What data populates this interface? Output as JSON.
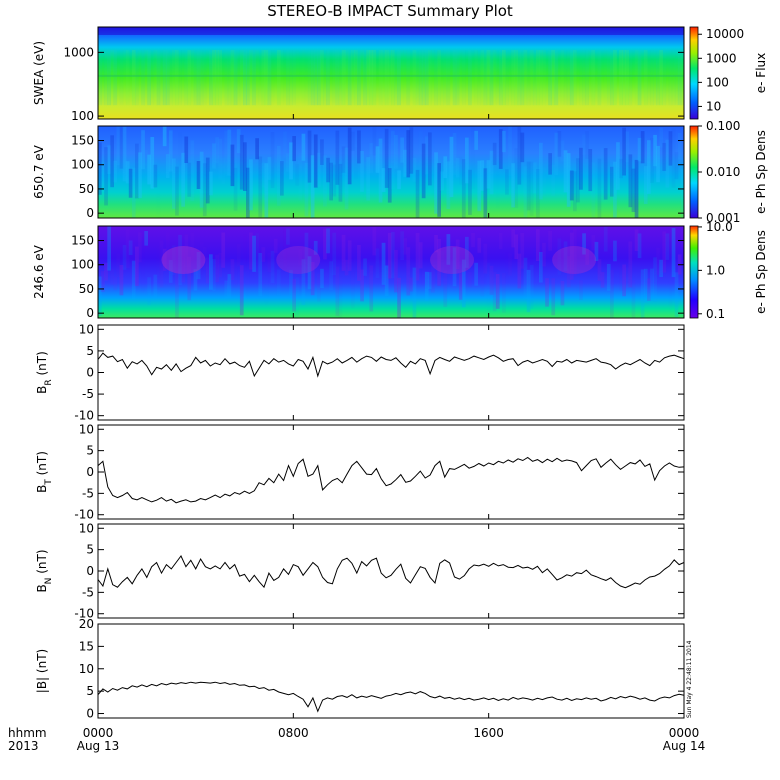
{
  "title": "STEREO-B IMPACT Summary Plot",
  "stamp": "Sun May  4 22:48:11 2014",
  "x_axis": {
    "corner_labels": [
      "hhmm",
      "2013"
    ],
    "ticks": [
      {
        "t": 0,
        "top": "0000",
        "bottom": "Aug 13"
      },
      {
        "t": 8,
        "top": "0800",
        "bottom": ""
      },
      {
        "t": 16,
        "top": "1600",
        "bottom": ""
      },
      {
        "t": 24,
        "top": "0000",
        "bottom": "Aug 14"
      }
    ]
  },
  "spectrograms": [
    {
      "id": "swea",
      "ylabel": "SWEA (eV)",
      "ytype": "log",
      "yrange": [
        90,
        2500
      ],
      "yticks": [
        "100",
        "1000"
      ],
      "ytickvals": [
        100,
        1000
      ],
      "ylog": true,
      "cbar_label": "e- Flux",
      "cbar_ticks": [
        "10000",
        "1000",
        "100",
        "10"
      ],
      "cbar_vals": [
        10000,
        1000,
        100,
        10
      ],
      "cbar_range": [
        3,
        20000
      ],
      "cbar_log": true,
      "palette": "rainbow"
    },
    {
      "id": "pad650",
      "ylabel": "650.7 eV",
      "ytype": "linear",
      "yrange": [
        -10,
        180
      ],
      "yticks": [
        "0",
        "50",
        "100",
        "150"
      ],
      "ytickvals": [
        0,
        50,
        100,
        150
      ],
      "ylog": false,
      "cbar_label": "e- Ph Sp Dens",
      "cbar_ticks": [
        "0.100",
        "0.010",
        "0.001"
      ],
      "cbar_vals": [
        0.1,
        0.01,
        0.001
      ],
      "cbar_range": [
        0.001,
        0.1
      ],
      "cbar_log": true,
      "palette": "rainbow"
    },
    {
      "id": "pad246",
      "ylabel": "246.6 eV",
      "ytype": "linear",
      "yrange": [
        -10,
        180
      ],
      "yticks": [
        "0",
        "50",
        "100",
        "150"
      ],
      "ytickvals": [
        0,
        50,
        100,
        150
      ],
      "ylog": false,
      "cbar_label": "e- Ph Sp Dens",
      "cbar_ticks": [
        "10.0",
        "1.0",
        "0.1"
      ],
      "cbar_vals": [
        10,
        1,
        0.1
      ],
      "cbar_range": [
        0.08,
        10.5
      ],
      "cbar_log": true,
      "palette": "violet"
    }
  ],
  "chart_data": [
    {
      "type": "line",
      "id": "br",
      "ylabel": "B",
      "ysub": "R",
      "yunit": "(nT)",
      "ylim": [
        -11,
        11
      ],
      "yticks": [
        "10",
        "5",
        "0",
        "-5",
        "-10"
      ],
      "ytickvals": [
        10,
        5,
        0,
        -5,
        -10
      ],
      "x": [
        0,
        0.2,
        0.4,
        0.6,
        0.8,
        1,
        1.2,
        1.4,
        1.6,
        1.8,
        2,
        2.2,
        2.4,
        2.6,
        2.8,
        3,
        3.2,
        3.4,
        3.6,
        3.8,
        4,
        4.2,
        4.4,
        4.6,
        4.8,
        5,
        5.2,
        5.4,
        5.6,
        5.8,
        6,
        6.2,
        6.4,
        6.6,
        6.8,
        7,
        7.2,
        7.4,
        7.6,
        7.8,
        8,
        8.2,
        8.4,
        8.6,
        8.8,
        9,
        9.2,
        9.4,
        9.6,
        9.8,
        10,
        10.2,
        10.4,
        10.6,
        10.8,
        11,
        11.2,
        11.4,
        11.6,
        11.8,
        12,
        12.2,
        12.4,
        12.6,
        12.8,
        13,
        13.2,
        13.4,
        13.6,
        13.8,
        14,
        14.2,
        14.4,
        14.6,
        14.8,
        15,
        15.2,
        15.4,
        15.6,
        15.8,
        16,
        16.2,
        16.4,
        16.6,
        16.8,
        17,
        17.2,
        17.4,
        17.6,
        17.8,
        18,
        18.2,
        18.4,
        18.6,
        18.8,
        19,
        19.2,
        19.4,
        19.6,
        19.8,
        20,
        20.2,
        20.4,
        20.6,
        20.8,
        21,
        21.2,
        21.4,
        21.6,
        21.8,
        22,
        22.2,
        22.4,
        22.6,
        22.8,
        23,
        23.2,
        23.4,
        23.6,
        23.8,
        24
      ],
      "y": [
        3,
        4.5,
        3.5,
        3.8,
        2.5,
        3,
        1,
        2.5,
        2,
        2.8,
        1.5,
        -0.5,
        1.2,
        0.8,
        1.8,
        0.5,
        2,
        0.2,
        1,
        1.6,
        3.5,
        2.2,
        2.8,
        1.5,
        2.2,
        1.8,
        3.2,
        2,
        2.4,
        1.6,
        1.2,
        2.6,
        -0.8,
        1,
        2.8,
        2,
        3.2,
        2.4,
        2.8,
        2,
        1.5,
        3,
        2.6,
        0.8,
        3.5,
        -0.8,
        2.6,
        2,
        2.4,
        3.2,
        2.2,
        2.8,
        3.5,
        2.4,
        3.2,
        3.8,
        3.5,
        2.6,
        3.6,
        3,
        2.8,
        3.4,
        2.2,
        1.2,
        2.6,
        2,
        3.2,
        2.8,
        -0.3,
        2.8,
        3.5,
        3,
        2.6,
        3.6,
        3.2,
        2.8,
        3.2,
        3.8,
        3.4,
        3,
        3.6,
        4,
        3.4,
        2.6,
        3,
        3.2,
        1.6,
        2.4,
        2.8,
        2.2,
        2.6,
        3,
        2.6,
        1.4,
        2.6,
        2.4,
        3,
        2.2,
        2.8,
        2.6,
        2.4,
        2.8,
        3.2,
        2.4,
        2.2,
        1.8,
        0.8,
        1.6,
        2.2,
        1.8,
        2.4,
        3,
        2.2,
        1.6,
        2.8,
        2.4,
        3.4,
        3.8,
        4,
        3.6,
        3.2
      ]
    },
    {
      "type": "line",
      "id": "bt",
      "ylabel": "B",
      "ysub": "T",
      "yunit": "(nT)",
      "ylim": [
        -11,
        11
      ],
      "yticks": [
        "10",
        "5",
        "0",
        "-5",
        "-10"
      ],
      "ytickvals": [
        10,
        5,
        0,
        -5,
        -10
      ],
      "x": [
        0,
        0.2,
        0.4,
        0.6,
        0.8,
        1,
        1.2,
        1.4,
        1.6,
        1.8,
        2,
        2.2,
        2.4,
        2.6,
        2.8,
        3,
        3.2,
        3.4,
        3.6,
        3.8,
        4,
        4.2,
        4.4,
        4.6,
        4.8,
        5,
        5.2,
        5.4,
        5.6,
        5.8,
        6,
        6.2,
        6.4,
        6.6,
        6.8,
        7,
        7.2,
        7.4,
        7.6,
        7.8,
        8,
        8.2,
        8.4,
        8.6,
        8.8,
        9,
        9.2,
        9.4,
        9.6,
        9.8,
        10,
        10.2,
        10.4,
        10.6,
        10.8,
        11,
        11.2,
        11.4,
        11.6,
        11.8,
        12,
        12.2,
        12.4,
        12.6,
        12.8,
        13,
        13.2,
        13.4,
        13.6,
        13.8,
        14,
        14.2,
        14.4,
        14.6,
        14.8,
        15,
        15.2,
        15.4,
        15.6,
        15.8,
        16,
        16.2,
        16.4,
        16.6,
        16.8,
        17,
        17.2,
        17.4,
        17.6,
        17.8,
        18,
        18.2,
        18.4,
        18.6,
        18.8,
        19,
        19.2,
        19.4,
        19.6,
        19.8,
        20,
        20.2,
        20.4,
        20.6,
        20.8,
        21,
        21.2,
        21.4,
        21.6,
        21.8,
        22,
        22.2,
        22.4,
        22.6,
        22.8,
        23,
        23.2,
        23.4,
        23.6,
        23.8,
        24
      ],
      "y": [
        1.5,
        2.5,
        -3.5,
        -5.5,
        -6,
        -5.5,
        -4.8,
        -6.2,
        -6.5,
        -6,
        -6.5,
        -7,
        -6.6,
        -6,
        -6.8,
        -6.4,
        -7.2,
        -6.8,
        -6.5,
        -7,
        -6.8,
        -6.2,
        -6.5,
        -6,
        -5.4,
        -6,
        -5.2,
        -5.6,
        -4.8,
        -5.2,
        -4.5,
        -5,
        -4.4,
        -2.5,
        -3,
        -1.5,
        -2.5,
        -0.5,
        -2,
        1.5,
        -1,
        2,
        3,
        -1,
        -0.5,
        1.5,
        -4.2,
        -3,
        -2,
        -1.5,
        -2.5,
        -0.5,
        1.5,
        2.5,
        1,
        -0.5,
        -0.6,
        0.8,
        -1.6,
        -3.2,
        -2.8,
        -1.8,
        -0.6,
        -2.4,
        -2.1,
        -1,
        0.2,
        -1.4,
        -0.7,
        1.5,
        2.5,
        -1.2,
        0.8,
        0.6,
        1.2,
        1.8,
        0.9,
        1.3,
        2,
        1.4,
        2.1,
        1.7,
        2.5,
        2.1,
        2.8,
        2.3,
        3.1,
        2.7,
        3.4,
        2.5,
        2.9,
        2.2,
        3,
        2.4,
        3.2,
        2.5,
        2.8,
        2.6,
        2.2,
        0.3,
        1.5,
        2.7,
        3.1,
        1.1,
        2.1,
        3,
        1.7,
        0.6,
        1.4,
        2.2,
        1.9,
        2.8,
        1.3,
        1.9,
        -1.9,
        0.3,
        1.4,
        2.1,
        1.4,
        1.1,
        1.2
      ]
    },
    {
      "type": "line",
      "id": "bn",
      "ylabel": "B",
      "ysub": "N",
      "yunit": "(nT)",
      "ylim": [
        -11,
        11
      ],
      "yticks": [
        "10",
        "5",
        "0",
        "-5",
        "-10"
      ],
      "ytickvals": [
        10,
        5,
        0,
        -5,
        -10
      ],
      "x": [
        0,
        0.2,
        0.4,
        0.6,
        0.8,
        1,
        1.2,
        1.4,
        1.6,
        1.8,
        2,
        2.2,
        2.4,
        2.6,
        2.8,
        3,
        3.2,
        3.4,
        3.6,
        3.8,
        4,
        4.2,
        4.4,
        4.6,
        4.8,
        5,
        5.2,
        5.4,
        5.6,
        5.8,
        6,
        6.2,
        6.4,
        6.6,
        6.8,
        7,
        7.2,
        7.4,
        7.6,
        7.8,
        8,
        8.2,
        8.4,
        8.6,
        8.8,
        9,
        9.2,
        9.4,
        9.6,
        9.8,
        10,
        10.2,
        10.4,
        10.6,
        10.8,
        11,
        11.2,
        11.4,
        11.6,
        11.8,
        12,
        12.2,
        12.4,
        12.6,
        12.8,
        13,
        13.2,
        13.4,
        13.6,
        13.8,
        14,
        14.2,
        14.4,
        14.6,
        14.8,
        15,
        15.2,
        15.4,
        15.6,
        15.8,
        16,
        16.2,
        16.4,
        16.6,
        16.8,
        17,
        17.2,
        17.4,
        17.6,
        17.8,
        18,
        18.2,
        18.4,
        18.6,
        18.8,
        19,
        19.2,
        19.4,
        19.6,
        19.8,
        20,
        20.2,
        20.4,
        20.6,
        20.8,
        21,
        21.2,
        21.4,
        21.6,
        21.8,
        22,
        22.2,
        22.4,
        22.6,
        22.8,
        23,
        23.2,
        23.4,
        23.6,
        23.8,
        24
      ],
      "y": [
        -2,
        -3.5,
        0.5,
        -3.2,
        -3.8,
        -2.5,
        -1.5,
        -3,
        -1,
        0.5,
        -1.5,
        1,
        2,
        -0.5,
        1.5,
        0.5,
        2,
        3.5,
        1,
        2.5,
        0.5,
        2.8,
        1,
        0.5,
        1.2,
        0.5,
        2,
        0.5,
        1.5,
        -1.2,
        -0.8,
        -2.5,
        -1,
        -2.5,
        -3.8,
        -0.5,
        -2.2,
        -1.5,
        0.5,
        -0.8,
        1.5,
        1,
        -1,
        0.5,
        2,
        1,
        -1.5,
        -2.7,
        -3,
        0.5,
        2.5,
        3,
        1.8,
        -0.5,
        2.2,
        1.2,
        2.5,
        3,
        -0.5,
        -1.6,
        -1,
        0.4,
        1.6,
        -1.7,
        -2.8,
        -0.9,
        1,
        0.6,
        -1.5,
        -2.8,
        1.8,
        2.6,
        1.9,
        -1.4,
        -1.9,
        -1.1,
        0.5,
        1.4,
        1.2,
        1.6,
        1.1,
        1.8,
        1.2,
        1.5,
        0.9,
        0.8,
        1.3,
        0.7,
        0.9,
        0.4,
        1.1,
        -0.4,
        0.5,
        -0.8,
        -2.1,
        -1.6,
        -0.9,
        -1.2,
        -0.4,
        -0.6,
        0.2,
        -0.9,
        -1.3,
        -1.8,
        -2.2,
        -1.6,
        -2.7,
        -3.5,
        -3.9,
        -3.4,
        -2.8,
        -3.1,
        -2.1,
        -1.4,
        -1.2,
        -0.6,
        0.4,
        1.2,
        2.6,
        1.5,
        2
      ]
    },
    {
      "type": "line",
      "id": "btot",
      "ylabel": "|B| (nT)",
      "ysub": "",
      "yunit": "",
      "ylim": [
        -1,
        20
      ],
      "yticks": [
        "20",
        "15",
        "10",
        "5",
        "0"
      ],
      "ytickvals": [
        20,
        15,
        10,
        5,
        0
      ],
      "x": [
        0,
        0.2,
        0.4,
        0.6,
        0.8,
        1,
        1.2,
        1.4,
        1.6,
        1.8,
        2,
        2.2,
        2.4,
        2.6,
        2.8,
        3,
        3.2,
        3.4,
        3.6,
        3.8,
        4,
        4.2,
        4.4,
        4.6,
        4.8,
        5,
        5.2,
        5.4,
        5.6,
        5.8,
        6,
        6.2,
        6.4,
        6.6,
        6.8,
        7,
        7.2,
        7.4,
        7.6,
        7.8,
        8,
        8.2,
        8.4,
        8.6,
        8.8,
        9,
        9.2,
        9.4,
        9.6,
        9.8,
        10,
        10.2,
        10.4,
        10.6,
        10.8,
        11,
        11.2,
        11.4,
        11.6,
        11.8,
        12,
        12.2,
        12.4,
        12.6,
        12.8,
        13,
        13.2,
        13.4,
        13.6,
        13.8,
        14,
        14.2,
        14.4,
        14.6,
        14.8,
        15,
        15.2,
        15.4,
        15.6,
        15.8,
        16,
        16.2,
        16.4,
        16.6,
        16.8,
        17,
        17.2,
        17.4,
        17.6,
        17.8,
        18,
        18.2,
        18.4,
        18.6,
        18.8,
        19,
        19.2,
        19.4,
        19.6,
        19.8,
        20,
        20.2,
        20.4,
        20.6,
        20.8,
        21,
        21.2,
        21.4,
        21.6,
        21.8,
        22,
        22.2,
        22.4,
        22.6,
        22.8,
        23,
        23.2,
        23.4,
        23.6,
        23.8,
        24
      ],
      "y": [
        4.2,
        5.5,
        4.8,
        5.6,
        5.2,
        5.8,
        5.5,
        6.2,
        5.9,
        6.4,
        6,
        6.5,
        6.2,
        6.7,
        6.4,
        6.8,
        6.6,
        6.9,
        6.7,
        7,
        6.8,
        7,
        6.9,
        6.8,
        7,
        6.7,
        6.9,
        6.5,
        6.7,
        6.3,
        6.4,
        6,
        6.1,
        5.6,
        5.8,
        5.2,
        5.4,
        4.8,
        4.5,
        4.2,
        4.5,
        3.8,
        3.2,
        1.5,
        3.5,
        0.5,
        3,
        3.5,
        3.2,
        3.8,
        4,
        3.6,
        4.2,
        3.5,
        3.9,
        3.6,
        4,
        3.7,
        3.4,
        3.9,
        4.1,
        4.5,
        4.2,
        4.6,
        4.8,
        4.4,
        4.9,
        4.5,
        3.8,
        3.5,
        3.9,
        3.4,
        3.6,
        3.2,
        3.5,
        3.1,
        3.4,
        3,
        3.2,
        3.5,
        3.1,
        3.4,
        2.9,
        3.3,
        3,
        3.6,
        3.2,
        3.5,
        3.3,
        3,
        3.4,
        3.1,
        3.5,
        3.7,
        3.2,
        3,
        3.4,
        2.9,
        3.3,
        3.1,
        3.5,
        3.2,
        3.4,
        2.8,
        3.1,
        3.6,
        3.3,
        3.8,
        3.5,
        3.9,
        3.6,
        3.2,
        3.5,
        3,
        2.8,
        3.4,
        3.7,
        3.5,
        4,
        4.3,
        4.1
      ]
    }
  ],
  "colors": {
    "line": "#000000",
    "frame": "#000000"
  }
}
